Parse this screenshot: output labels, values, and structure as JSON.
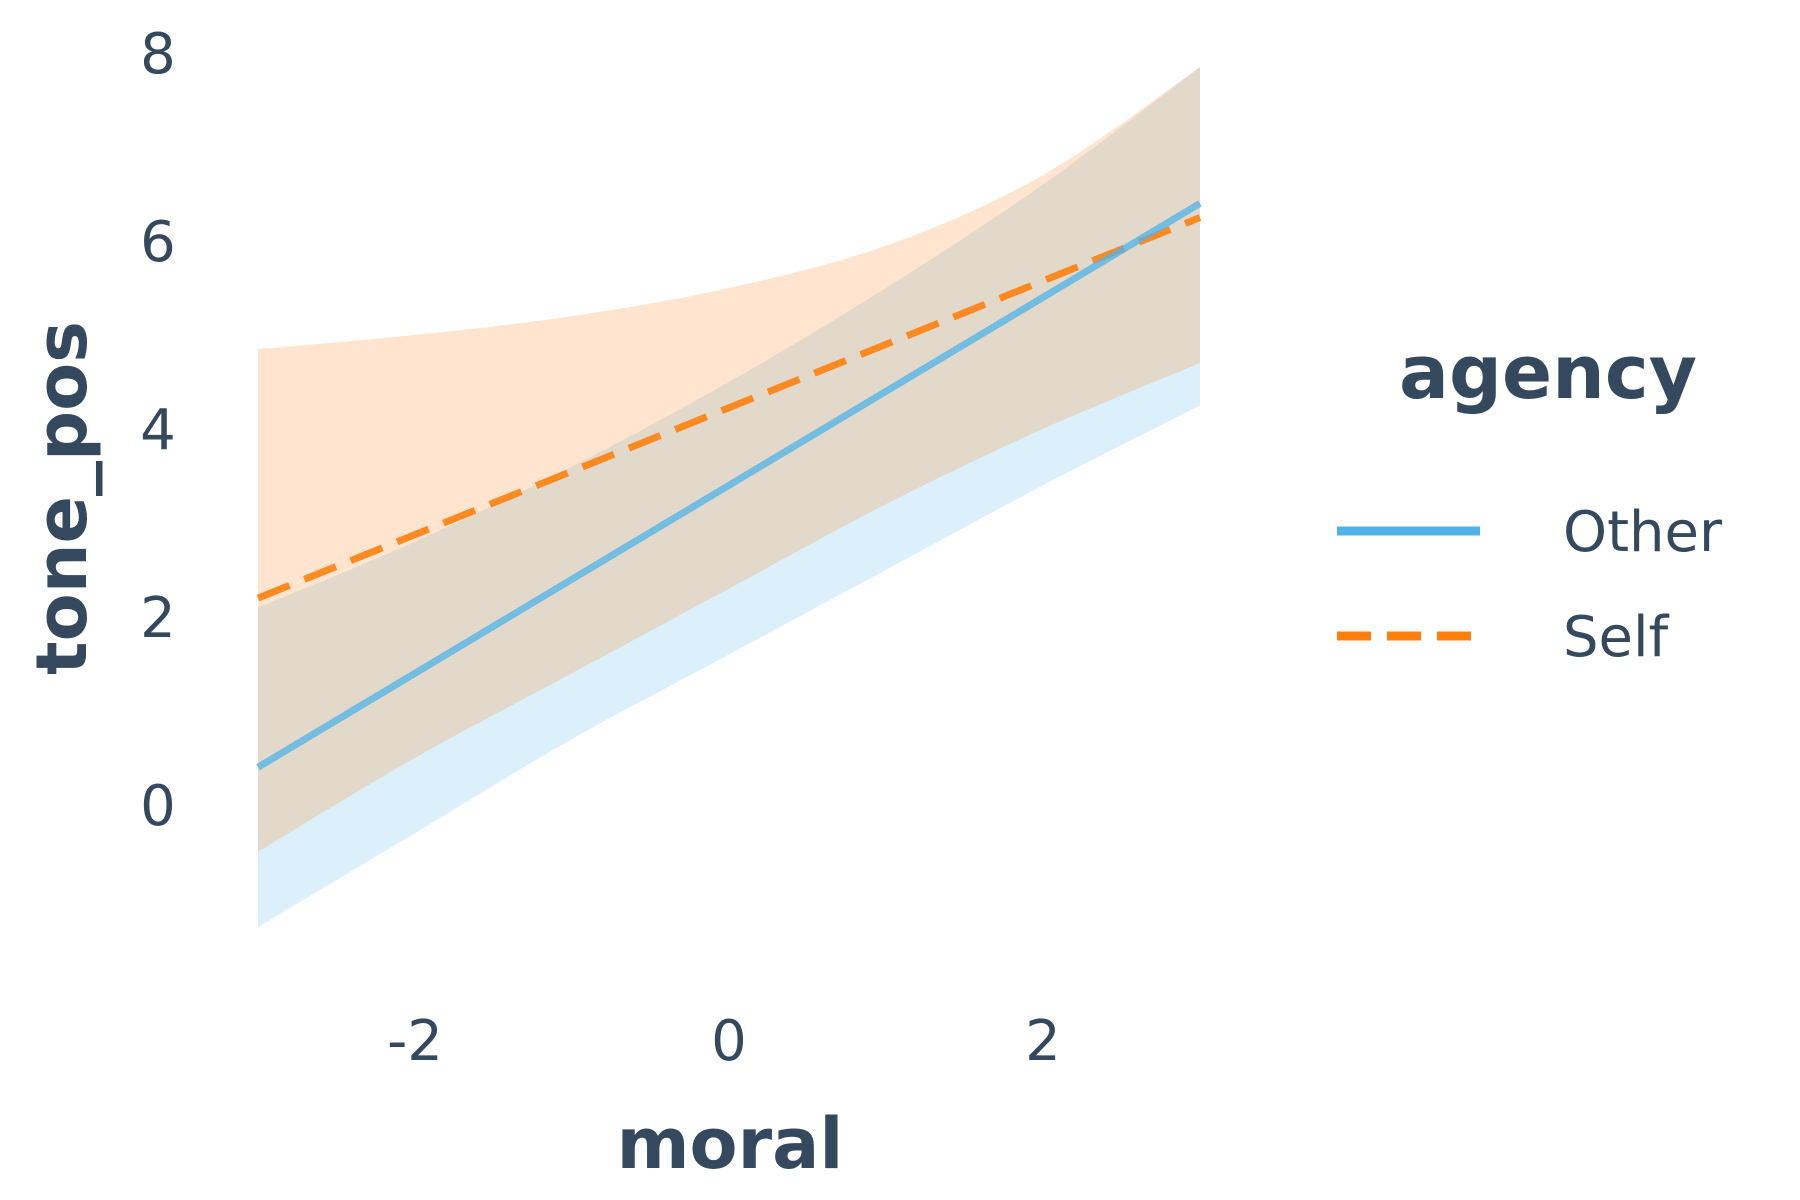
{
  "chart_data": {
    "type": "line",
    "xlabel": "moral",
    "ylabel": "tone_pos",
    "xlim": [
      -3.0,
      3.0
    ],
    "ylim": [
      -1.3,
      8.0
    ],
    "x_ticks": [
      -2,
      0,
      2
    ],
    "x_tick_labels": [
      "-2",
      "0",
      "2"
    ],
    "y_ticks": [
      0,
      2,
      4,
      6,
      8
    ],
    "y_tick_labels": [
      "0",
      "2",
      "4",
      "6",
      "8"
    ],
    "grid": false,
    "legend": {
      "title": "agency",
      "position": "right"
    },
    "series": [
      {
        "name": "Other",
        "color": "#4fb3ea",
        "line_style": "solid",
        "x": [
          -3.0,
          3.0
        ],
        "y": [
          0.4,
          6.4
        ],
        "band": {
          "x": [
            -3.0,
            -2.0,
            -1.0,
            0.0,
            1.0,
            2.0,
            3.0
          ],
          "lower": [
            -1.3,
            -0.3,
            0.7,
            1.6,
            2.5,
            3.4,
            4.25
          ],
          "upper": [
            2.1,
            2.8,
            3.6,
            4.5,
            5.5,
            6.6,
            7.85
          ]
        }
      },
      {
        "name": "Self",
        "color": "#ff7f0e",
        "line_style": "dashed",
        "x": [
          -3.0,
          3.0
        ],
        "y": [
          2.2,
          6.25
        ],
        "band": {
          "x": [
            -3.0,
            -2.0,
            -1.0,
            0.0,
            1.0,
            2.0,
            3.0
          ],
          "lower": [
            -0.5,
            0.5,
            1.4,
            2.3,
            3.2,
            4.0,
            4.7
          ],
          "upper": [
            4.85,
            5.0,
            5.2,
            5.5,
            5.95,
            6.7,
            7.85
          ]
        }
      }
    ]
  }
}
